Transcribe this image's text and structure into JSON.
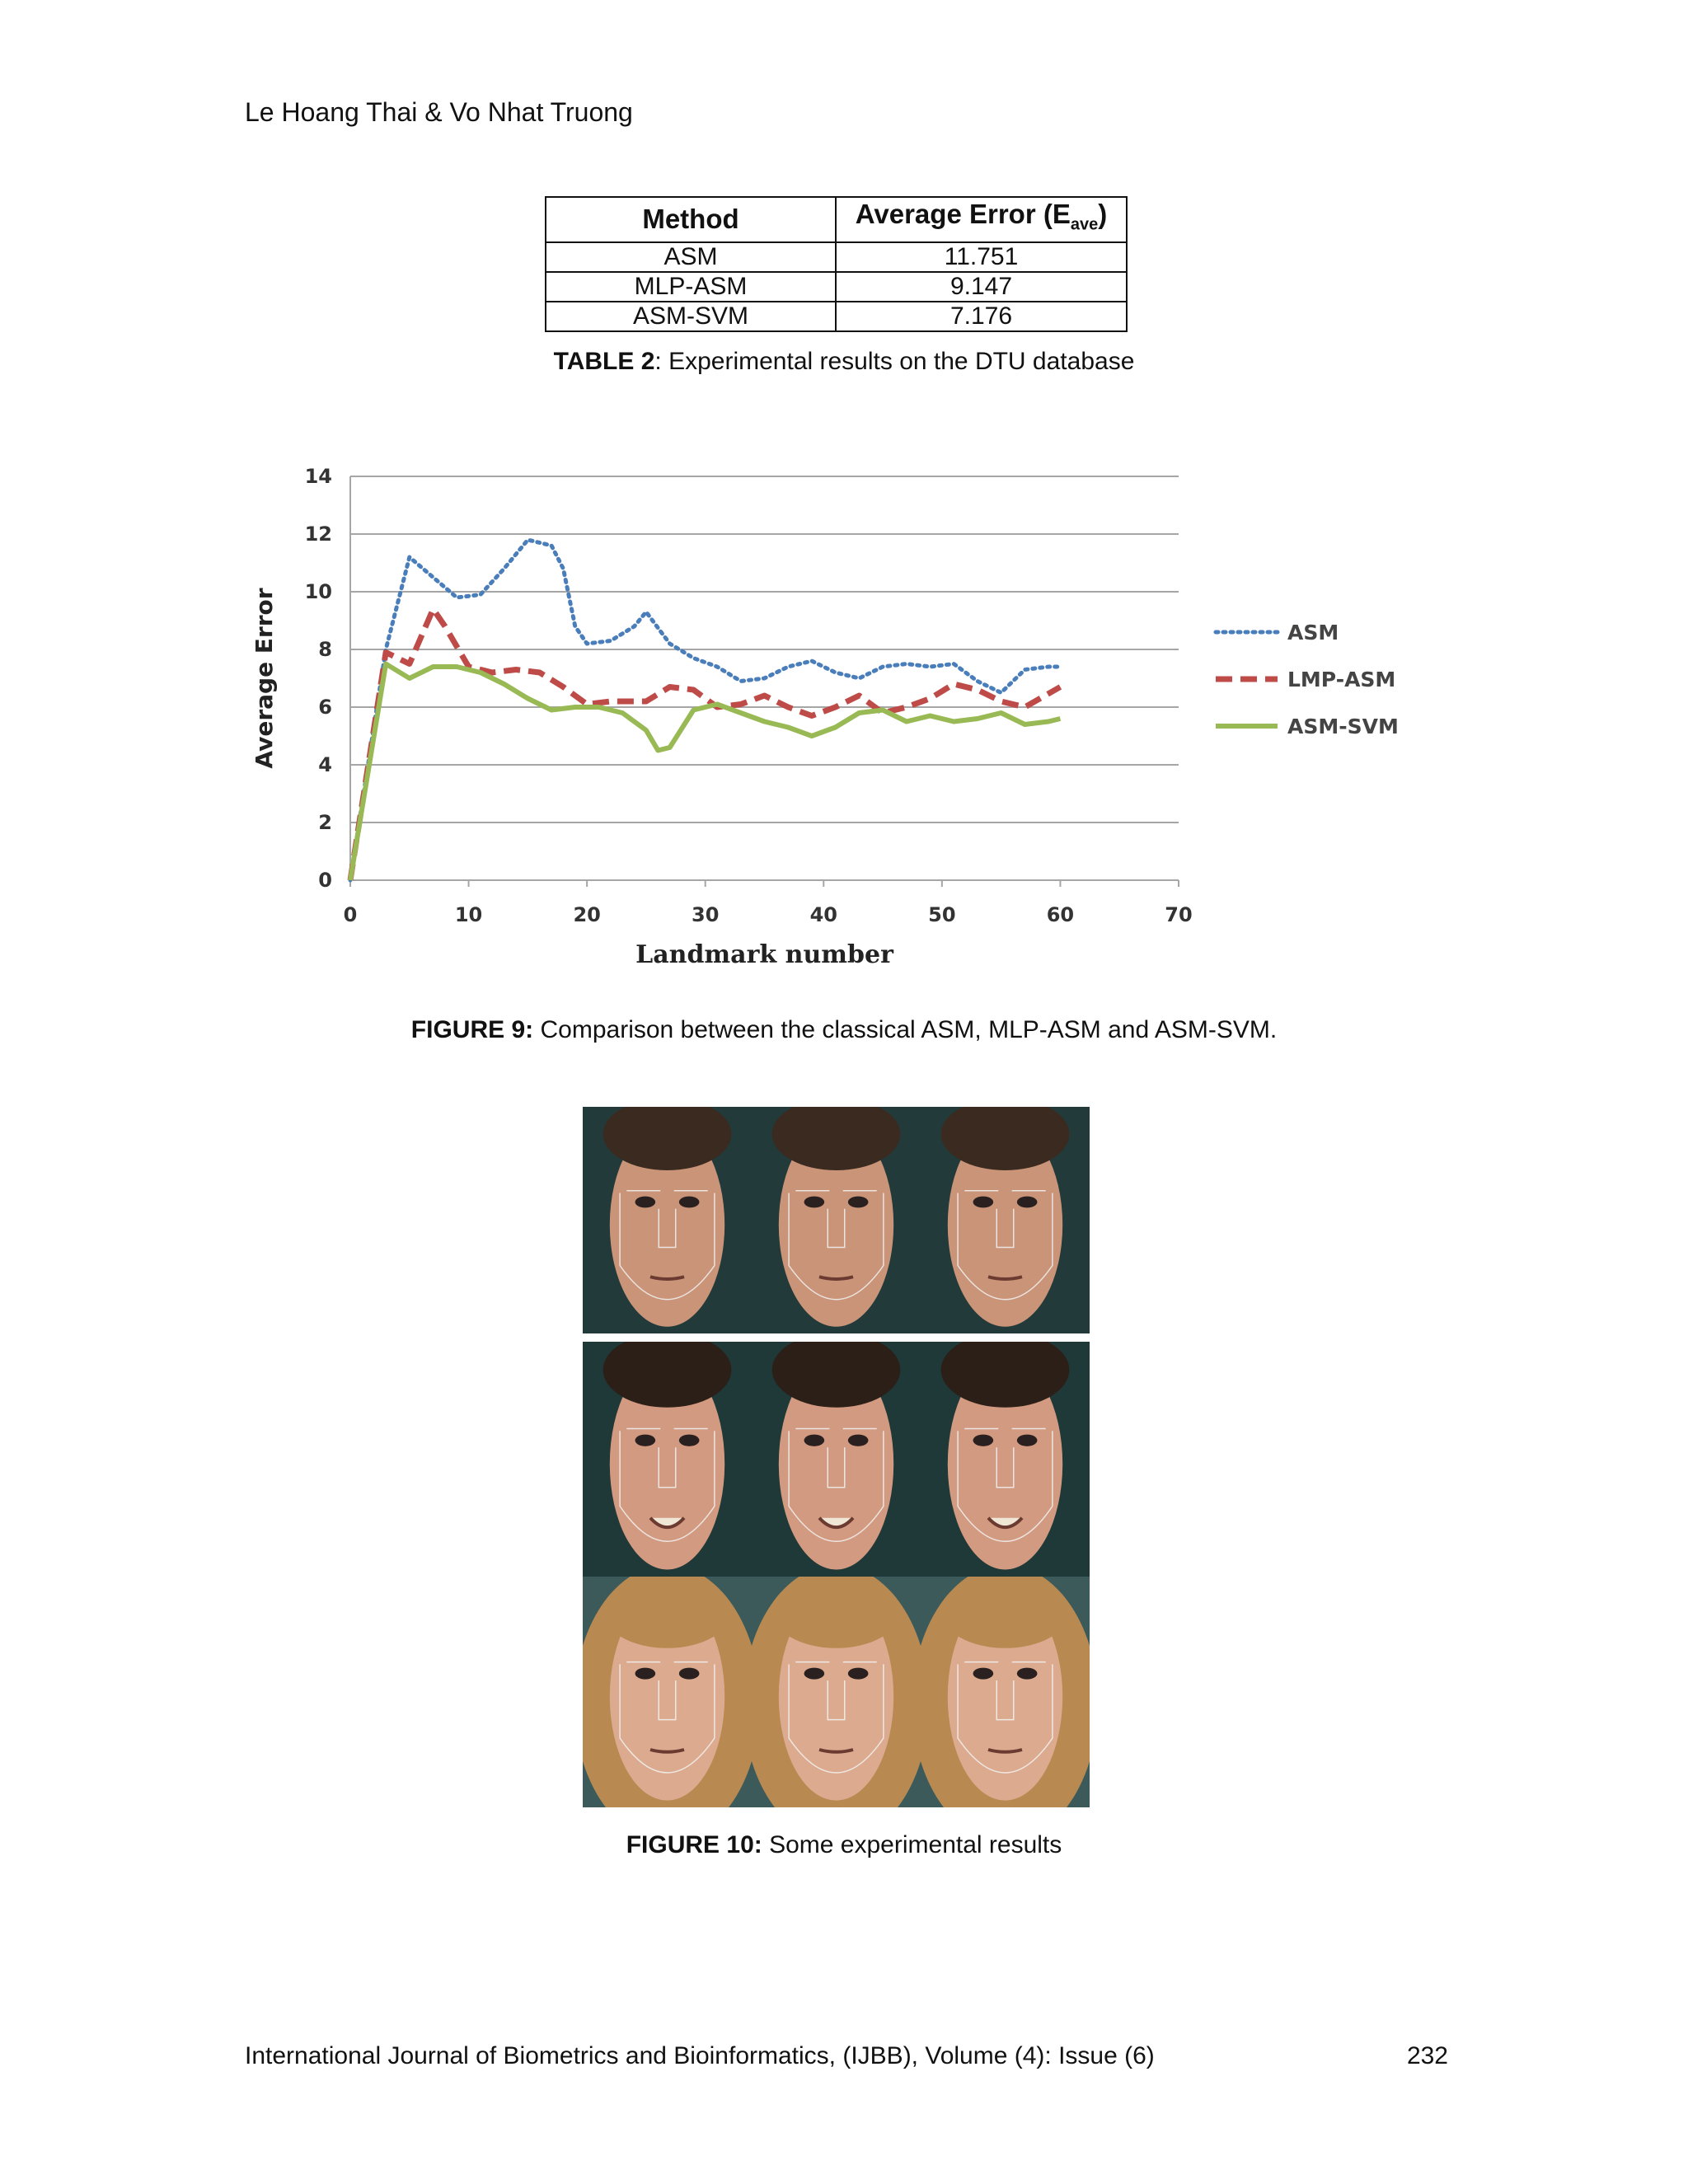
{
  "header": {
    "authors": "Le Hoang Thai & Vo Nhat Truong"
  },
  "table": {
    "col_method": "Method",
    "col_error_main": "Average Error (E",
    "col_error_sub": "ave",
    "col_error_close": ")",
    "rows": [
      {
        "method": "ASM",
        "error": "11.751"
      },
      {
        "method": "MLP-ASM",
        "error": "9.147"
      },
      {
        "method": "ASM-SVM",
        "error": "7.176"
      }
    ],
    "caption_label": "TABLE 2",
    "caption_text": ": Experimental results on the DTU database"
  },
  "figure9": {
    "caption_label": "FIGURE 9:",
    "caption_text": " Comparison between the classical ASM, MLP-ASM and ASM-SVM."
  },
  "figure10": {
    "caption_label": "FIGURE 10:",
    "caption_text": " Some experimental results"
  },
  "footer": {
    "journal": "International Journal of Biometrics and Bioinformatics, (IJBB), Volume (4): Issue (6)",
    "page": "232"
  },
  "chart_data": {
    "type": "line",
    "title": "",
    "xlabel": "Landmark number",
    "ylabel": "Average Error",
    "xlim": [
      0,
      70
    ],
    "ylim": [
      0,
      14
    ],
    "xticks": [
      0,
      10,
      20,
      30,
      40,
      50,
      60,
      70
    ],
    "yticks": [
      0,
      2,
      4,
      6,
      8,
      10,
      12,
      14
    ],
    "grid": true,
    "legend_position": "right",
    "series": [
      {
        "name": "ASM",
        "color": "#4a7ebb",
        "style": "dotted",
        "x": [
          0,
          3,
          5,
          7,
          9,
          11,
          13,
          15,
          17,
          18,
          19,
          20,
          22,
          24,
          25,
          27,
          29,
          31,
          33,
          35,
          37,
          39,
          41,
          43,
          45,
          47,
          49,
          51,
          53,
          55,
          57,
          59,
          60
        ],
        "y": [
          0,
          8,
          11.2,
          10.5,
          9.8,
          9.9,
          10.8,
          11.8,
          11.6,
          10.8,
          8.8,
          8.2,
          8.3,
          8.8,
          9.3,
          8.2,
          7.7,
          7.4,
          6.9,
          7.0,
          7.4,
          7.6,
          7.2,
          7.0,
          7.4,
          7.5,
          7.4,
          7.5,
          6.9,
          6.5,
          7.3,
          7.4,
          7.4
        ]
      },
      {
        "name": "LMP-ASM",
        "color": "#be4b48",
        "style": "dashed",
        "x": [
          0,
          3,
          5,
          7,
          8,
          10,
          12,
          14,
          16,
          18,
          20,
          22,
          25,
          27,
          29,
          31,
          33,
          35,
          37,
          39,
          41,
          43,
          45,
          47,
          49,
          51,
          53,
          55,
          57,
          60
        ],
        "y": [
          0,
          7.9,
          7.5,
          9.4,
          8.8,
          7.4,
          7.2,
          7.3,
          7.2,
          6.7,
          6.1,
          6.2,
          6.2,
          6.7,
          6.6,
          6.0,
          6.1,
          6.4,
          6.0,
          5.7,
          6.0,
          6.4,
          5.8,
          6.0,
          6.3,
          6.8,
          6.6,
          6.2,
          6.0,
          6.7
        ]
      },
      {
        "name": "ASM-SVM",
        "color": "#98b954",
        "style": "solid",
        "x": [
          0,
          3,
          5,
          7,
          9,
          11,
          13,
          15,
          17,
          19,
          21,
          23,
          25,
          26,
          27,
          29,
          31,
          33,
          35,
          37,
          39,
          41,
          43,
          45,
          47,
          49,
          51,
          53,
          55,
          57,
          59,
          60
        ],
        "y": [
          0,
          7.5,
          7.0,
          7.4,
          7.4,
          7.2,
          6.8,
          6.3,
          5.9,
          6.0,
          6.0,
          5.8,
          5.2,
          4.5,
          4.6,
          5.9,
          6.1,
          5.8,
          5.5,
          5.3,
          5.0,
          5.3,
          5.8,
          5.9,
          5.5,
          5.7,
          5.5,
          5.6,
          5.8,
          5.4,
          5.5,
          5.6
        ]
      }
    ]
  }
}
